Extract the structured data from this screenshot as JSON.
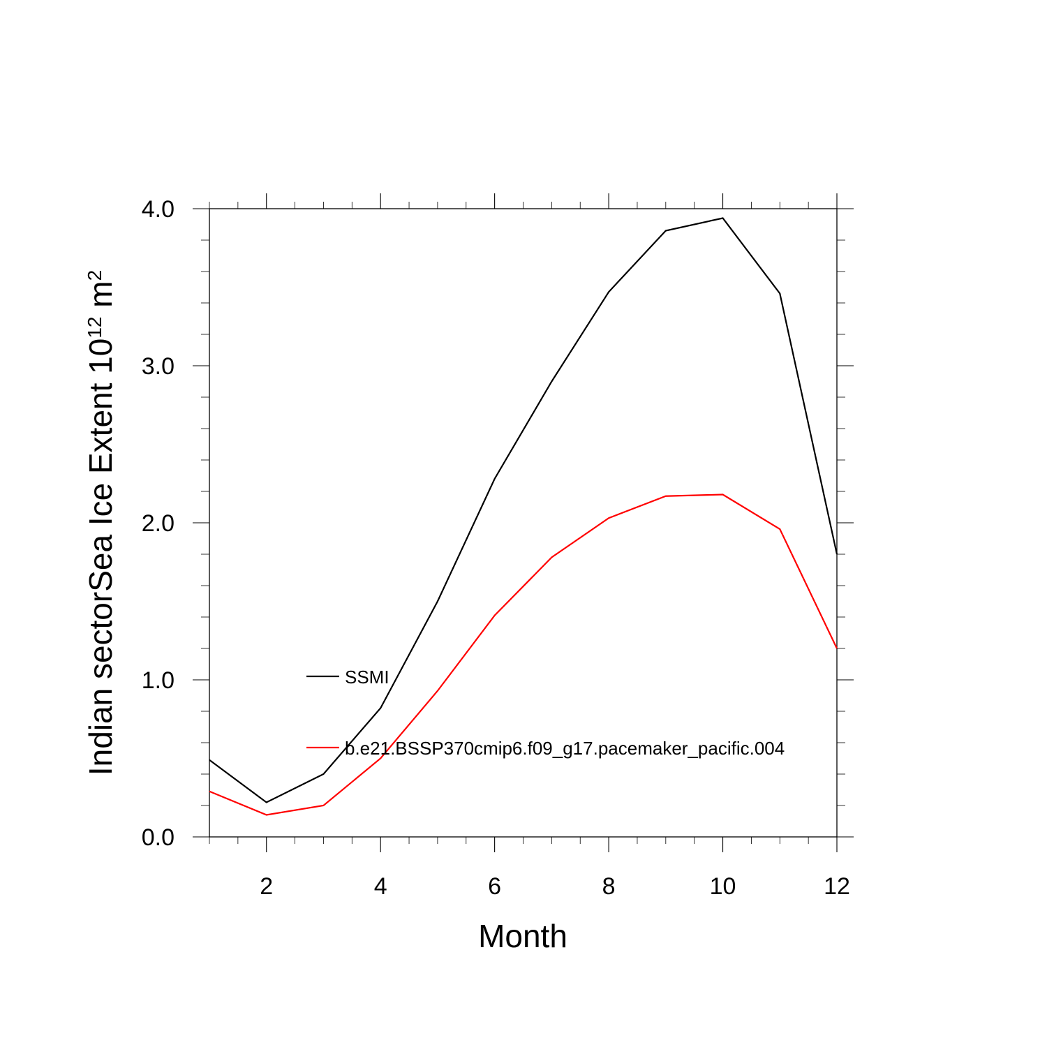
{
  "chart_data": {
    "type": "line",
    "title": "",
    "xlabel": "Month",
    "ylabel_main": "Indian sectorSea Ice Extent 10",
    "ylabel_exponent": "12",
    "ylabel_unit": " m",
    "ylabel_unit_exponent": "2",
    "x": [
      1,
      2,
      3,
      4,
      5,
      6,
      7,
      8,
      9,
      10,
      11,
      12
    ],
    "xlim": [
      1,
      12
    ],
    "ylim": [
      0,
      4
    ],
    "xticks": [
      2,
      4,
      6,
      8,
      10,
      12
    ],
    "xtick_labels": [
      "2",
      "4",
      "6",
      "8",
      "10",
      "12"
    ],
    "yticks": [
      0,
      1,
      2,
      3,
      4
    ],
    "ytick_labels": [
      "0.0",
      "1.0",
      "2.0",
      "3.0",
      "4.0"
    ],
    "grid": false,
    "legend_position": "lower-left inside",
    "series": [
      {
        "name": "SSMI",
        "color": "#000000",
        "values": [
          0.49,
          0.22,
          0.4,
          0.82,
          1.5,
          2.28,
          2.9,
          3.47,
          3.86,
          3.94,
          3.46,
          1.8
        ]
      },
      {
        "name": "b.e21.BSSP370cmip6.f09_g17.pacemaker_pacific.004",
        "color": "#ff0000",
        "values": [
          0.29,
          0.14,
          0.2,
          0.5,
          0.93,
          1.41,
          1.78,
          2.03,
          2.17,
          2.18,
          1.96,
          1.2
        ]
      }
    ]
  }
}
